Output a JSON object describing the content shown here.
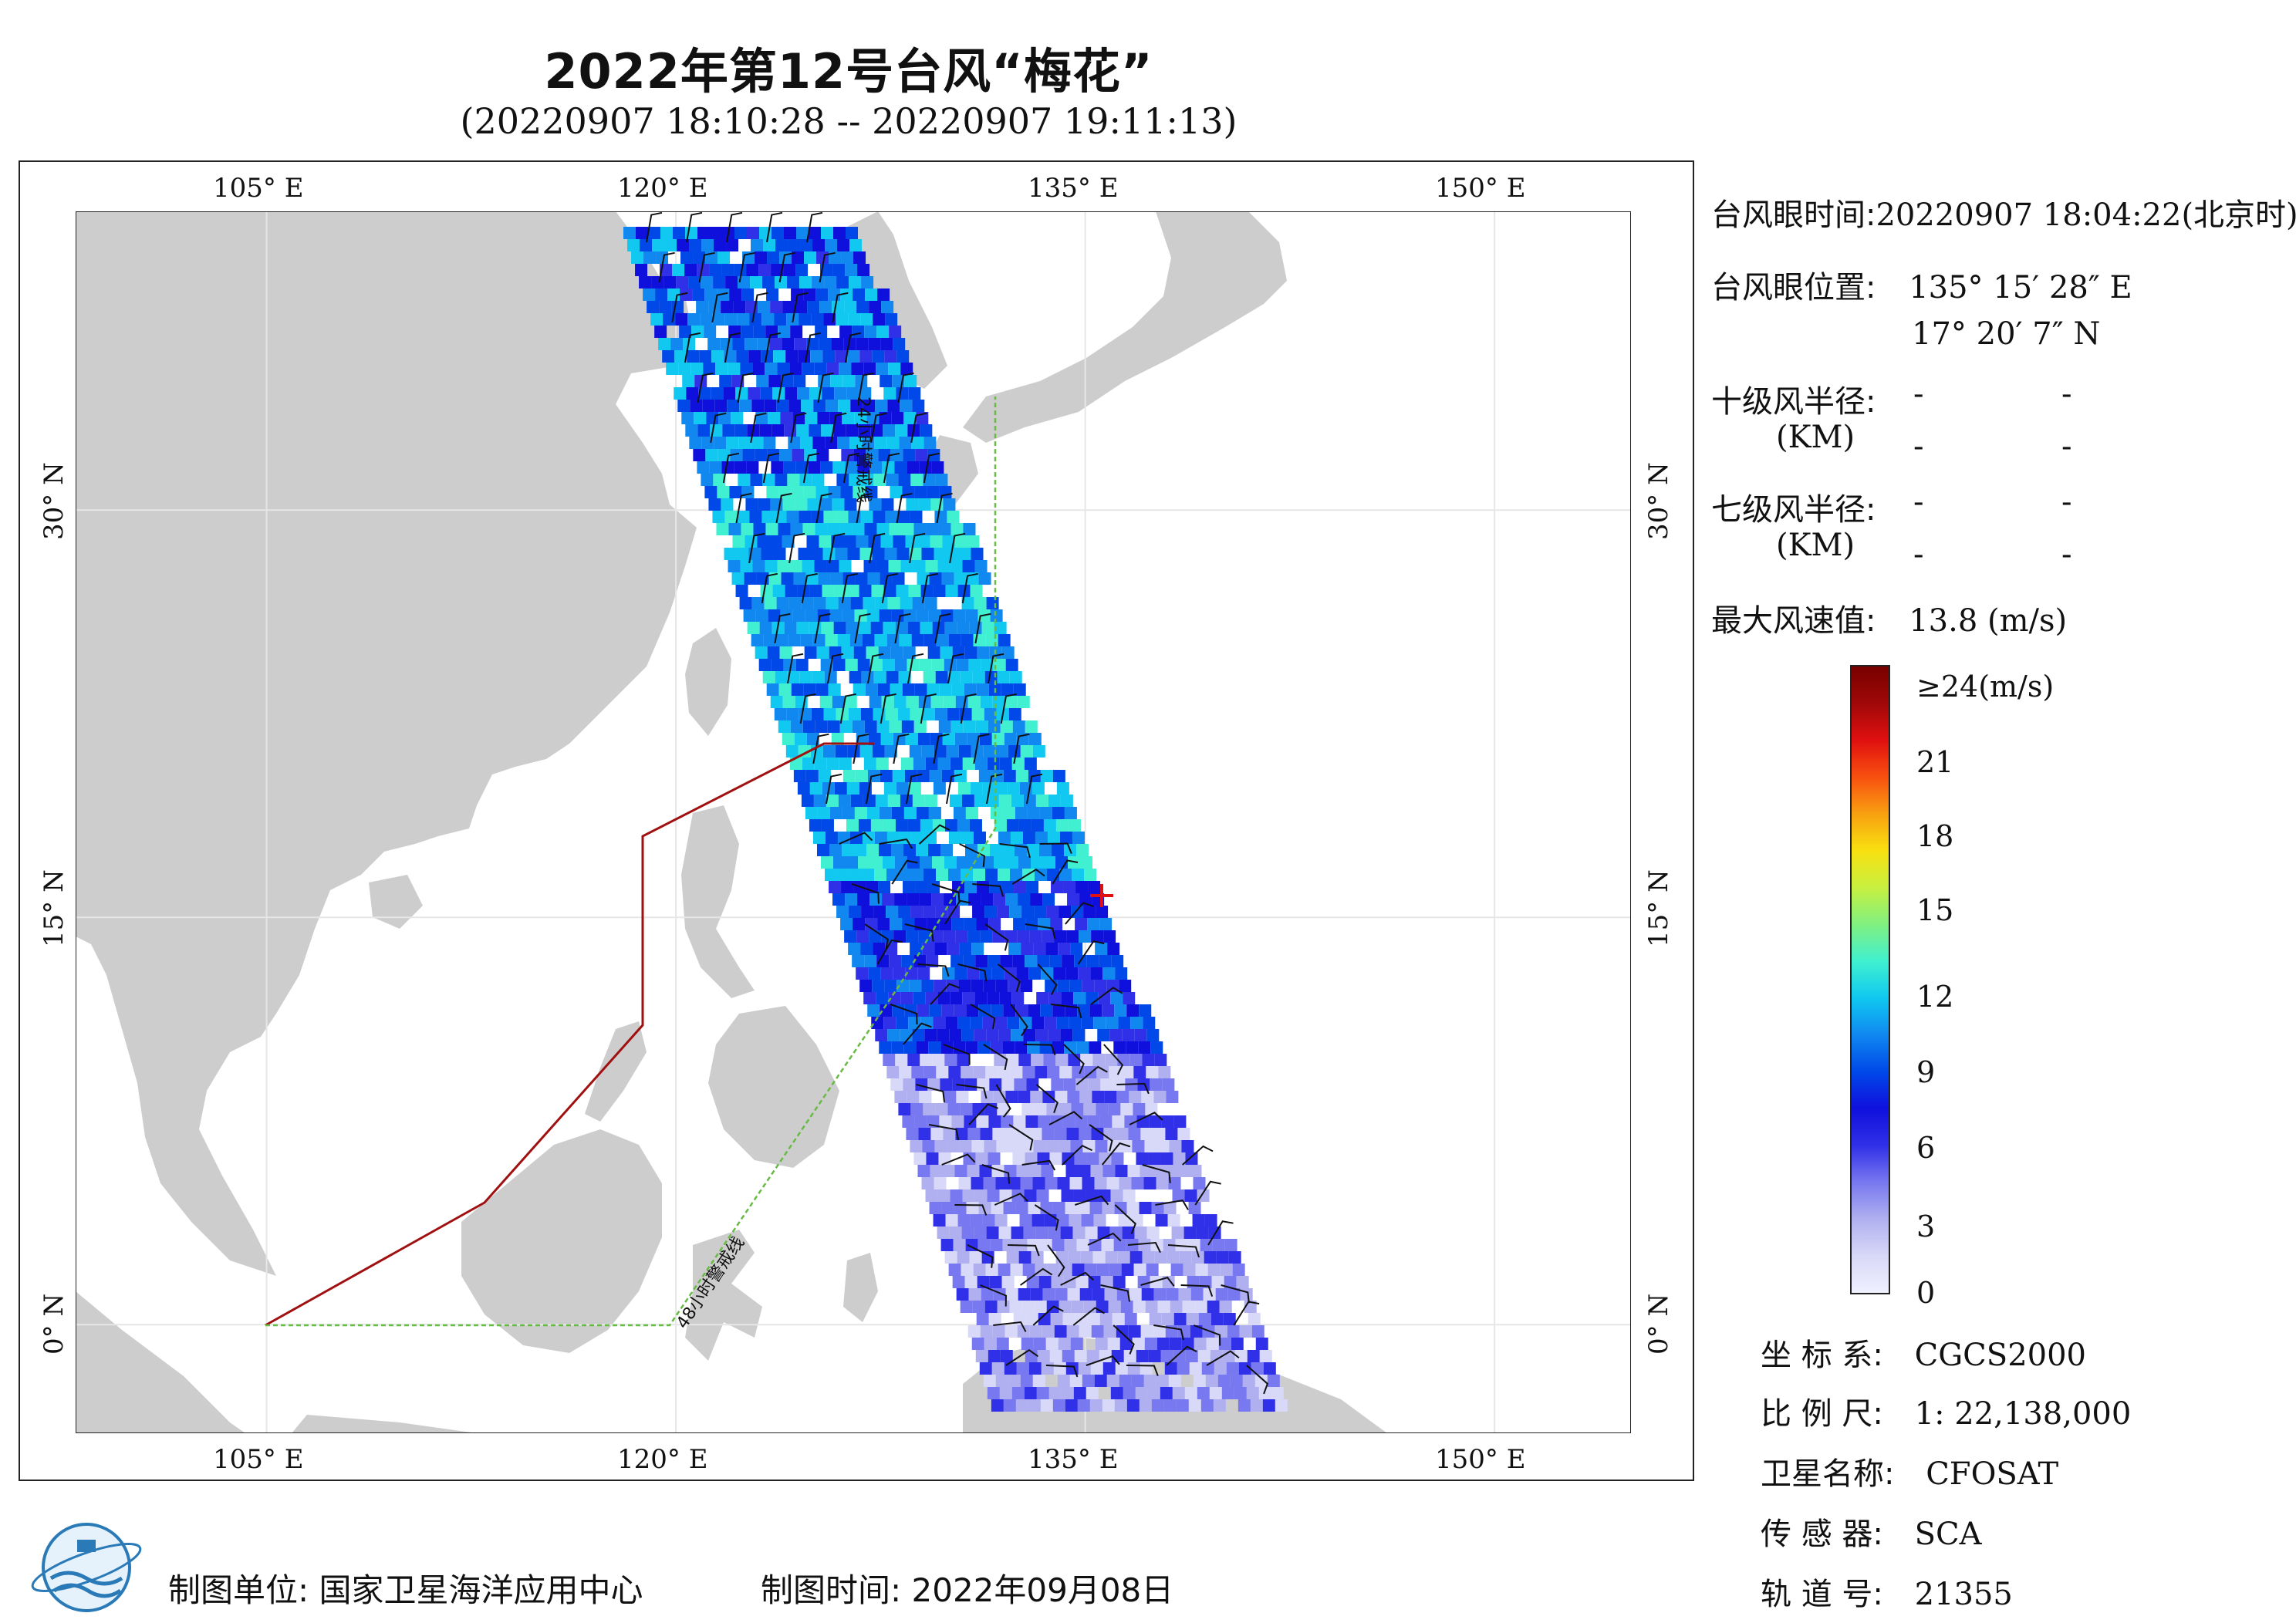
{
  "title": "2022年第12号台风“梅花”",
  "subtitle": "(20220907 18:10:28 -- 20220907 19:11:13)",
  "map": {
    "lon_labels": [
      "105° E",
      "120° E",
      "135° E",
      "150° E"
    ],
    "lat_labels": [
      "30° N",
      "15° N",
      "0° N"
    ],
    "line_48h": "48小时警戒线",
    "line_24h": "24小时警戒线"
  },
  "info": {
    "eye_time_label": "台风眼时间:",
    "eye_time_value": "20220907 18:04:22(北京时)",
    "eye_pos_label": "台风眼位置:",
    "eye_lon": "135° 15′ 28″ E",
    "eye_lat": "17° 20′ 7″ N",
    "r10_label": "十级风半径:",
    "r7_label": "七级风半径:",
    "km_label": "(KM)",
    "dash": "-",
    "max_wind_label": "最大风速值:",
    "max_wind_value": "13.8  (m/s)"
  },
  "colorbar": {
    "top_label": "≥24(m/s)",
    "ticks": [
      "21",
      "18",
      "15",
      "12",
      "9",
      "6",
      "3",
      "0"
    ],
    "colors": [
      "#f0f0ff",
      "#d8d8f8",
      "#b0b0f0",
      "#7878f0",
      "#3030e8",
      "#1010dd",
      "#0048e8",
      "#1088f0",
      "#10c8f0",
      "#40f0d0",
      "#80f080",
      "#c8f040",
      "#f8e010",
      "#f8a010",
      "#f85010",
      "#e01010",
      "#a00808",
      "#780000"
    ]
  },
  "meta": {
    "coord_label": "坐 标 系:",
    "coord_value": "CGCS2000",
    "scale_label": "比 例 尺:",
    "scale_value": "1: 22,138,000",
    "sat_label": "卫星名称:",
    "sat_value": "CFOSAT",
    "sensor_label": "传 感 器:",
    "sensor_value": "SCA",
    "orbit_label": "轨 道 号:",
    "orbit_value": "21355"
  },
  "footer": {
    "unit_label": "制图单位:  国家卫星海洋应用中心",
    "time_label": "制图时间:    2022年09月08日"
  },
  "colors": {
    "land": "#cdcdcd",
    "sea": "#ffffff",
    "line_48h": "#66bb44",
    "line_24h": "#a01010",
    "eye_marker": "#e01010"
  }
}
